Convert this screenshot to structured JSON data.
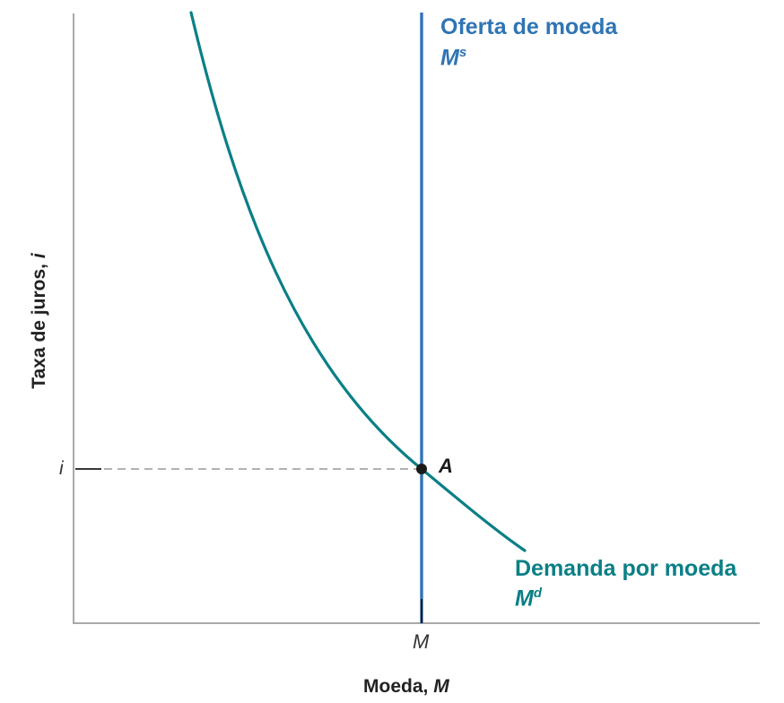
{
  "axes": {
    "x_label_text": "Moeda, ",
    "x_label_var": "M",
    "y_label_text": "Taxa de juros, ",
    "y_label_var": "i"
  },
  "ticks": {
    "x_tick": "M",
    "y_tick": "i"
  },
  "supply": {
    "label": "Oferta de moeda",
    "symbol_base": "M",
    "symbol_sup": "s",
    "color": "#2f74b5"
  },
  "demand": {
    "label": "Demanda por moeda",
    "symbol_base": "M",
    "symbol_sup": "d",
    "color": "#0a7f86"
  },
  "equilibrium": {
    "label": "A"
  },
  "colors": {
    "axis": "#a9a9a9",
    "guide": "#999999",
    "point": "#1a1a1a"
  }
}
